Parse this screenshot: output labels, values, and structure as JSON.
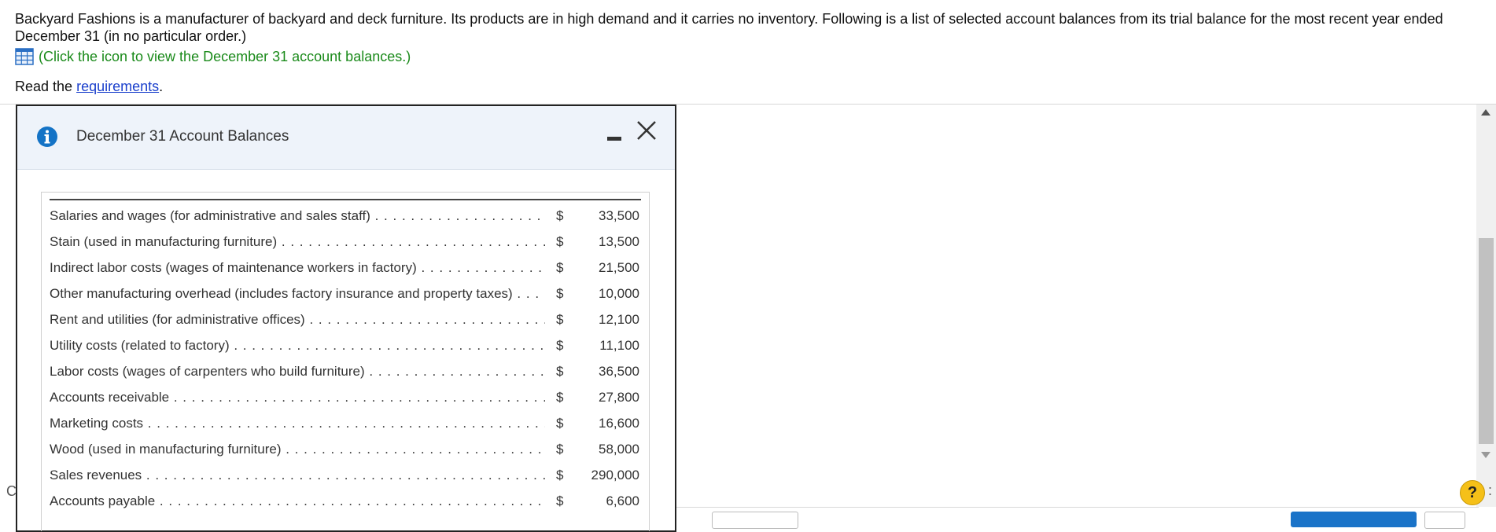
{
  "intro": {
    "text": "Backyard Fashions is a manufacturer of backyard and deck furniture. Its products are in high demand and it carries no inventory. Following is a list of selected account balances from its trial balance for the most recent year ended December 31 (in no particular order.)",
    "click_note": "(Click the icon to view the December 31 account balances.)",
    "read_prefix": "Read the",
    "requirements_link": "requirements",
    "read_suffix": "."
  },
  "dialog": {
    "title": "December 31 Account Balances",
    "rows": [
      {
        "label": "Salaries and wages (for administrative and sales staff)",
        "currency": "$",
        "value": "33,500"
      },
      {
        "label": "Stain (used in manufacturing furniture)",
        "currency": "$",
        "value": "13,500"
      },
      {
        "label": "Indirect labor costs (wages of maintenance workers in factory)",
        "currency": "$",
        "value": "21,500"
      },
      {
        "label": "Other manufacturing overhead (includes factory insurance and property taxes)",
        "currency": "$",
        "value": "10,000"
      },
      {
        "label": "Rent and utilities (for administrative offices)",
        "currency": "$",
        "value": "12,100"
      },
      {
        "label": "Utility costs (related to factory)",
        "currency": "$",
        "value": "11,100"
      },
      {
        "label": "Labor costs (wages of carpenters who build furniture)",
        "currency": "$",
        "value": "36,500"
      },
      {
        "label": "Accounts receivable",
        "currency": "$",
        "value": "27,800"
      },
      {
        "label": "Marketing costs",
        "currency": "$",
        "value": "16,600"
      },
      {
        "label": "Wood (used in manufacturing furniture)",
        "currency": "$",
        "value": "58,000"
      },
      {
        "label": "Sales revenues",
        "currency": "$",
        "value": "290,000"
      },
      {
        "label": "Accounts payable",
        "currency": "$",
        "value": "6,600"
      }
    ]
  },
  "footer": {
    "help_label": "?",
    "left_fragment": "C",
    "right_fragment": ":"
  },
  "icons": {
    "info": "info-icon",
    "grid": "grid-icon",
    "minimize": "minimize-icon",
    "close": "close-icon"
  },
  "colors": {
    "link_green": "#1a8a1a",
    "link_blue": "#1a3fcc",
    "header_bg": "#eef3fa",
    "info_blue": "#1473c6",
    "help_yellow": "#f5c018"
  }
}
